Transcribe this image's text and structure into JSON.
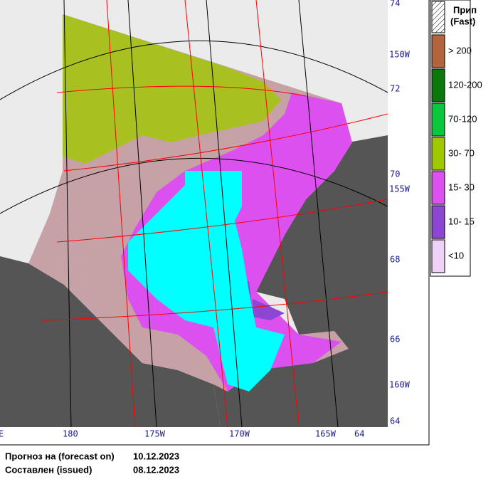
{
  "map": {
    "lat_labels": [
      "74",
      "72",
      "70",
      "68",
      "66",
      "64"
    ],
    "lon_labels_right": [
      "150W",
      "155W",
      "160W"
    ],
    "lon_labels_bottom": [
      "E",
      "180",
      "175W",
      "170W",
      "165W",
      "64"
    ]
  },
  "legend": {
    "fast": {
      "label_ru": "Прип",
      "label_en": "(Fast)"
    },
    "items": [
      {
        "label": "> 200",
        "color": "#b4643c"
      },
      {
        "label": "120-200",
        "color": "#0a780a"
      },
      {
        "label": "70-120",
        "color": "#0ac83c"
      },
      {
        "label": "30- 70",
        "color": "#a0c800"
      },
      {
        "label": "15- 30",
        "color": "#dc50f0"
      },
      {
        "label": "10- 15",
        "color": "#8c46d2"
      },
      {
        "label": "<10",
        "color": "#f0d2f8"
      }
    ]
  },
  "footer": {
    "forecast_label": "Прогноз на (forecast on)",
    "forecast_date": "10.12.2023",
    "issued_label": "Составлен (issued)",
    "issued_date": "08.12.2023"
  }
}
